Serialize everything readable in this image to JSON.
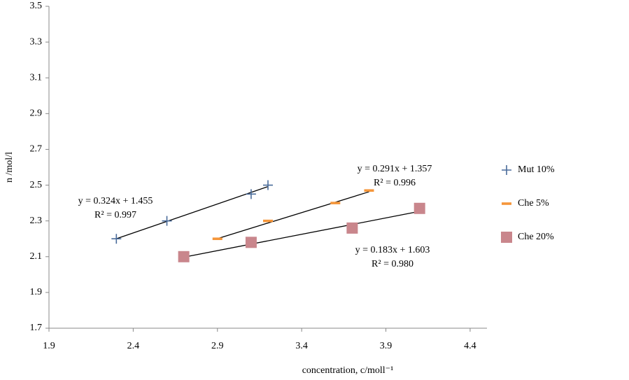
{
  "chart_data": {
    "type": "scatter",
    "x_label": "concentration, c/moll⁻¹",
    "y_label": "n /mol/l",
    "xlim": [
      1.9,
      4.5
    ],
    "xticks": [
      1.9,
      2.4,
      2.9,
      3.4,
      3.9,
      4.4
    ],
    "ylim": [
      1.7,
      3.5
    ],
    "yticks": [
      1.7,
      1.9,
      2.1,
      2.3,
      2.5,
      2.7,
      2.9,
      3.1,
      3.3,
      3.5
    ],
    "legend": "right",
    "series": [
      {
        "name": "Mut 10%",
        "color": "#4a6c9b",
        "marker": "plus",
        "x": [
          2.3,
          2.6,
          3.1,
          3.2
        ],
        "values": [
          2.2,
          2.3,
          2.45,
          2.5
        ],
        "trendline": {
          "slope": 0.324,
          "intercept": 1.455,
          "label": "y = 0.324x + 1.455",
          "r2_label": "R² = 0.997"
        }
      },
      {
        "name": "Che 5%",
        "color": "#f5963a",
        "marker": "dash",
        "x": [
          2.9,
          3.2,
          3.6,
          3.8
        ],
        "values": [
          2.2,
          2.3,
          2.4,
          2.47
        ],
        "trendline": {
          "slope": 0.291,
          "intercept": 1.357,
          "label": "y = 0.291x + 1.357",
          "r2_label": "R² = 0.996"
        }
      },
      {
        "name": "Che 20%",
        "color": "#c9868c",
        "marker": "square",
        "x": [
          2.7,
          3.1,
          3.7,
          4.1
        ],
        "values": [
          2.1,
          2.18,
          2.26,
          2.37
        ],
        "trendline": {
          "slope": 0.183,
          "intercept": 1.603,
          "label": "y = 0.183x + 1.603",
          "r2_label": "R² = 0.980"
        }
      }
    ]
  }
}
